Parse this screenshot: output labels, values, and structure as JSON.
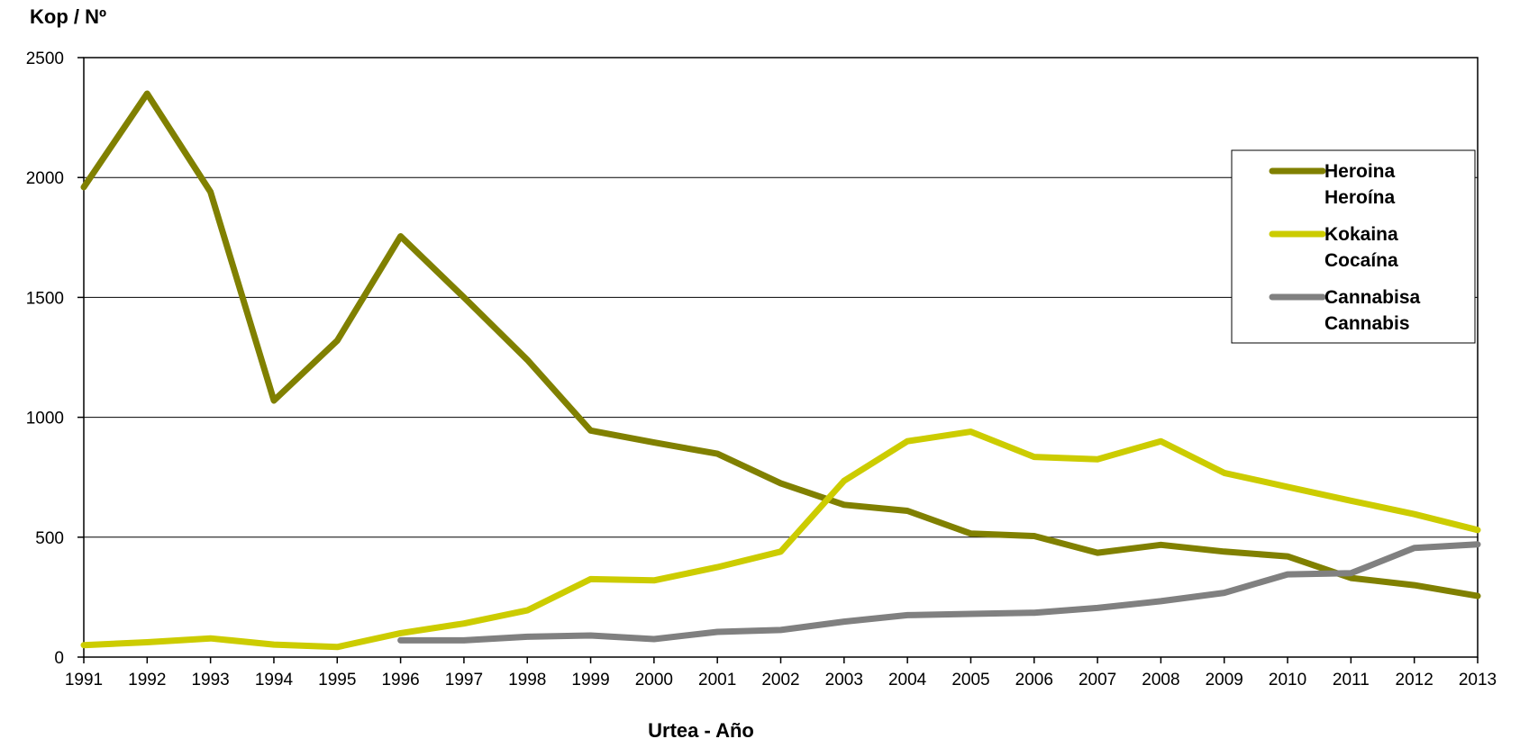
{
  "chart_data": {
    "type": "line",
    "ylabel": "Kop / Nº",
    "xlabel": "Urtea - Año",
    "x": [
      1991,
      1992,
      1993,
      1994,
      1995,
      1996,
      1997,
      1998,
      1999,
      2000,
      2001,
      2002,
      2003,
      2004,
      2005,
      2006,
      2007,
      2008,
      2009,
      2010,
      2011,
      2012,
      2013
    ],
    "xlim": [
      1991,
      2013
    ],
    "ylim": [
      0,
      2500
    ],
    "yticks": [
      0,
      500,
      1000,
      1500,
      2000,
      2500
    ],
    "grid": "horizontal",
    "legend_position": "top-right",
    "series": [
      {
        "name_line1": "Heroina",
        "name_line2": "Heroína",
        "color": "#808000",
        "values": [
          1960,
          2350,
          1940,
          1070,
          1320,
          1755,
          1500,
          1240,
          945,
          895,
          848,
          725,
          635,
          610,
          515,
          505,
          435,
          468,
          440,
          420,
          330,
          300,
          255
        ]
      },
      {
        "name_line1": "Kokaina",
        "name_line2": "Cocaína",
        "color": "#CCCC00",
        "values": [
          50,
          62,
          78,
          52,
          42,
          100,
          140,
          195,
          325,
          320,
          375,
          440,
          735,
          900,
          940,
          835,
          825,
          900,
          768,
          710,
          652,
          596,
          530
        ]
      },
      {
        "name_line1": "Cannabisa",
        "name_line2": "Cannabis",
        "color": "#808080",
        "values": [
          null,
          null,
          null,
          null,
          null,
          70,
          70,
          85,
          90,
          75,
          105,
          113,
          148,
          175,
          180,
          185,
          205,
          233,
          268,
          345,
          350,
          455,
          470
        ]
      }
    ]
  }
}
